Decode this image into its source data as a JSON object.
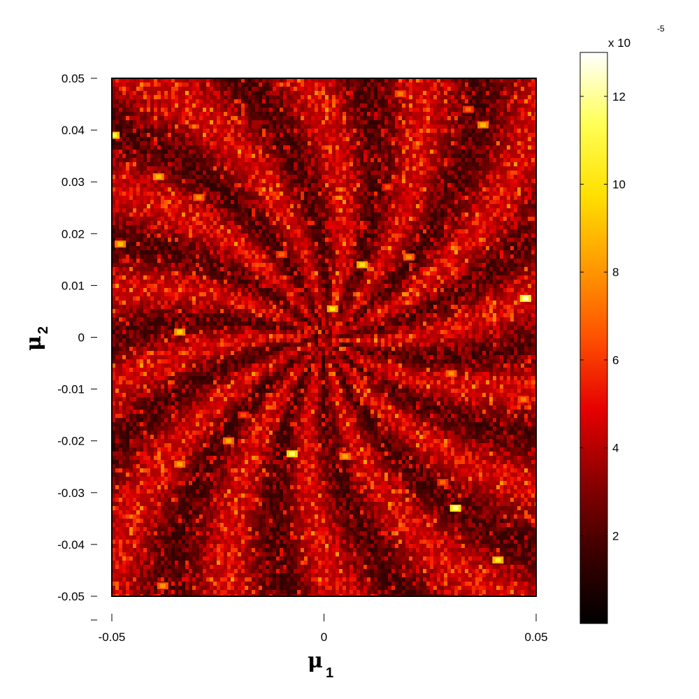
{
  "chart_data": {
    "type": "heatmap",
    "title": "",
    "xlabel": {
      "symbol": "μ",
      "subscript": "1"
    },
    "ylabel": {
      "symbol": "μ",
      "subscript": "2"
    },
    "xlim": [
      -0.05,
      0.05
    ],
    "ylim": [
      -0.05,
      0.05
    ],
    "xticks": [
      {
        "value": -0.05,
        "label": "-0.05"
      },
      {
        "value": 0,
        "label": "0"
      },
      {
        "value": 0.05,
        "label": "0.05"
      }
    ],
    "yticks": [
      {
        "value": 0.05,
        "label": "0.05"
      },
      {
        "value": 0.04,
        "label": "0.04"
      },
      {
        "value": 0.03,
        "label": "0.03"
      },
      {
        "value": 0.02,
        "label": "0.02"
      },
      {
        "value": 0.01,
        "label": "0.01"
      },
      {
        "value": 0,
        "label": "0"
      },
      {
        "value": -0.01,
        "label": "-0.01"
      },
      {
        "value": -0.02,
        "label": "-0.02"
      },
      {
        "value": -0.03,
        "label": "-0.03"
      },
      {
        "value": -0.04,
        "label": "-0.04"
      },
      {
        "value": -0.05,
        "label": "-0.05"
      }
    ],
    "colorbar": {
      "colormap": "hot",
      "range": [
        0,
        13
      ],
      "multiplier": {
        "base": "x 10",
        "exponent": "-5"
      },
      "ticks": [
        {
          "value": 2,
          "label": "2"
        },
        {
          "value": 4,
          "label": "4"
        },
        {
          "value": 6,
          "label": "6"
        },
        {
          "value": 8,
          "label": "8"
        },
        {
          "value": 10,
          "label": "10"
        },
        {
          "value": 12,
          "label": "12"
        }
      ],
      "stops": [
        "#000000",
        "#3c0000",
        "#8c0000",
        "#e60000",
        "#ff5000",
        "#ff9a00",
        "#ffe000",
        "#ffff55",
        "#ffffff"
      ]
    },
    "hotspots": [
      {
        "x": 0.0475,
        "y": 0.0075,
        "value": 12.5
      },
      {
        "x": 0.031,
        "y": -0.033,
        "value": 12.0
      },
      {
        "x": -0.0075,
        "y": -0.0225,
        "value": 11.5
      },
      {
        "x": -0.0495,
        "y": 0.039,
        "value": 11.0
      },
      {
        "x": 0.041,
        "y": -0.043,
        "value": 10.5
      },
      {
        "x": 0.009,
        "y": 0.014,
        "value": 10.0
      },
      {
        "x": 0.002,
        "y": 0.0055,
        "value": 10.0
      },
      {
        "x": -0.034,
        "y": 0.001,
        "value": 9.5
      },
      {
        "x": -0.048,
        "y": 0.018,
        "value": 9.0
      },
      {
        "x": 0.0375,
        "y": 0.041,
        "value": 9.0
      },
      {
        "x": -0.039,
        "y": 0.031,
        "value": 9.0
      },
      {
        "x": -0.034,
        "y": -0.0245,
        "value": 8.5
      },
      {
        "x": -0.0225,
        "y": -0.02,
        "value": 8.5
      },
      {
        "x": 0.005,
        "y": -0.023,
        "value": 8.5
      },
      {
        "x": 0.02,
        "y": 0.0155,
        "value": 8.0
      },
      {
        "x": -0.0295,
        "y": 0.027,
        "value": 8.0
      },
      {
        "x": 0.03,
        "y": -0.007,
        "value": 8.0
      },
      {
        "x": -0.038,
        "y": -0.048,
        "value": 8.0
      },
      {
        "x": 0.047,
        "y": -0.012,
        "value": 7.5
      },
      {
        "x": 0.018,
        "y": 0.047,
        "value": 7.5
      },
      {
        "x": 0.028,
        "y": -0.028,
        "value": 7.0
      },
      {
        "x": 0.034,
        "y": 0.044,
        "value": 7.0
      },
      {
        "x": -0.01,
        "y": 0.016,
        "value": 7.0
      },
      {
        "x": -0.019,
        "y": -0.015,
        "value": 6.5
      },
      {
        "x": 0.015,
        "y": 0.029,
        "value": 6.5
      }
    ]
  }
}
